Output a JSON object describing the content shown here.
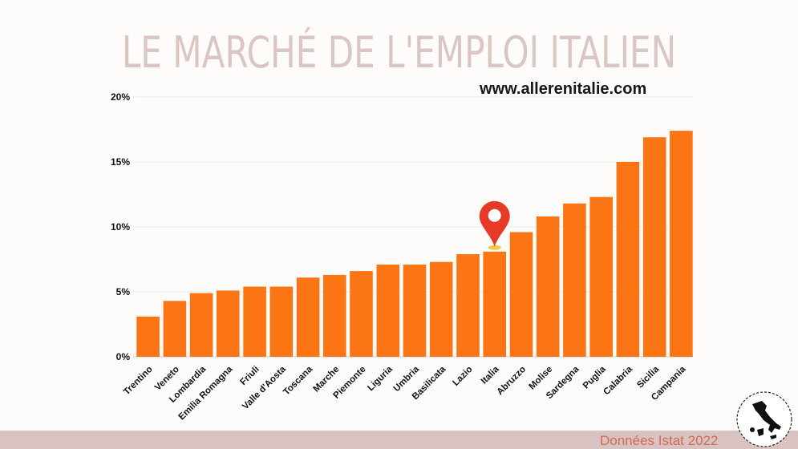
{
  "header": {
    "title": "LE MARCHÉ DE L'EMPLOI ITALIEN",
    "website": "www.allerenitalie.com"
  },
  "footer": {
    "source": "Données Istat 2022"
  },
  "colors": {
    "bar": "#fb7514",
    "title": "#dcc6c3",
    "marker": "#e63a26",
    "band": "#d9c3c2"
  },
  "icons": {
    "marker": "map-pin-icon",
    "logo": "italy-map-logo-icon"
  },
  "chart_data": {
    "type": "bar",
    "title": "",
    "xlabel": "",
    "ylabel": "",
    "ylim": [
      0,
      20
    ],
    "yticks": [
      "0%",
      "5%",
      "10%",
      "15%",
      "20%"
    ],
    "ytick_values": [
      0,
      5,
      10,
      15,
      20
    ],
    "grid": true,
    "highlight": "Italia",
    "categories": [
      "Trentino",
      "Veneto",
      "Lombardia",
      "Emilia Romagna",
      "Friuli",
      "Valle d'Aosta",
      "Toscana",
      "Marche",
      "Piemonte",
      "Liguria",
      "Umbria",
      "Basilicata",
      "Lazio",
      "Italia",
      "Abruzzo",
      "Molise",
      "Sardegna",
      "Puglia",
      "Calabria",
      "Sicilia",
      "Campania"
    ],
    "values": [
      3.1,
      4.3,
      4.9,
      5.1,
      5.4,
      5.4,
      6.1,
      6.3,
      6.6,
      7.1,
      7.1,
      7.3,
      7.9,
      8.1,
      9.6,
      10.8,
      11.8,
      12.3,
      15.0,
      16.9,
      17.4
    ]
  }
}
